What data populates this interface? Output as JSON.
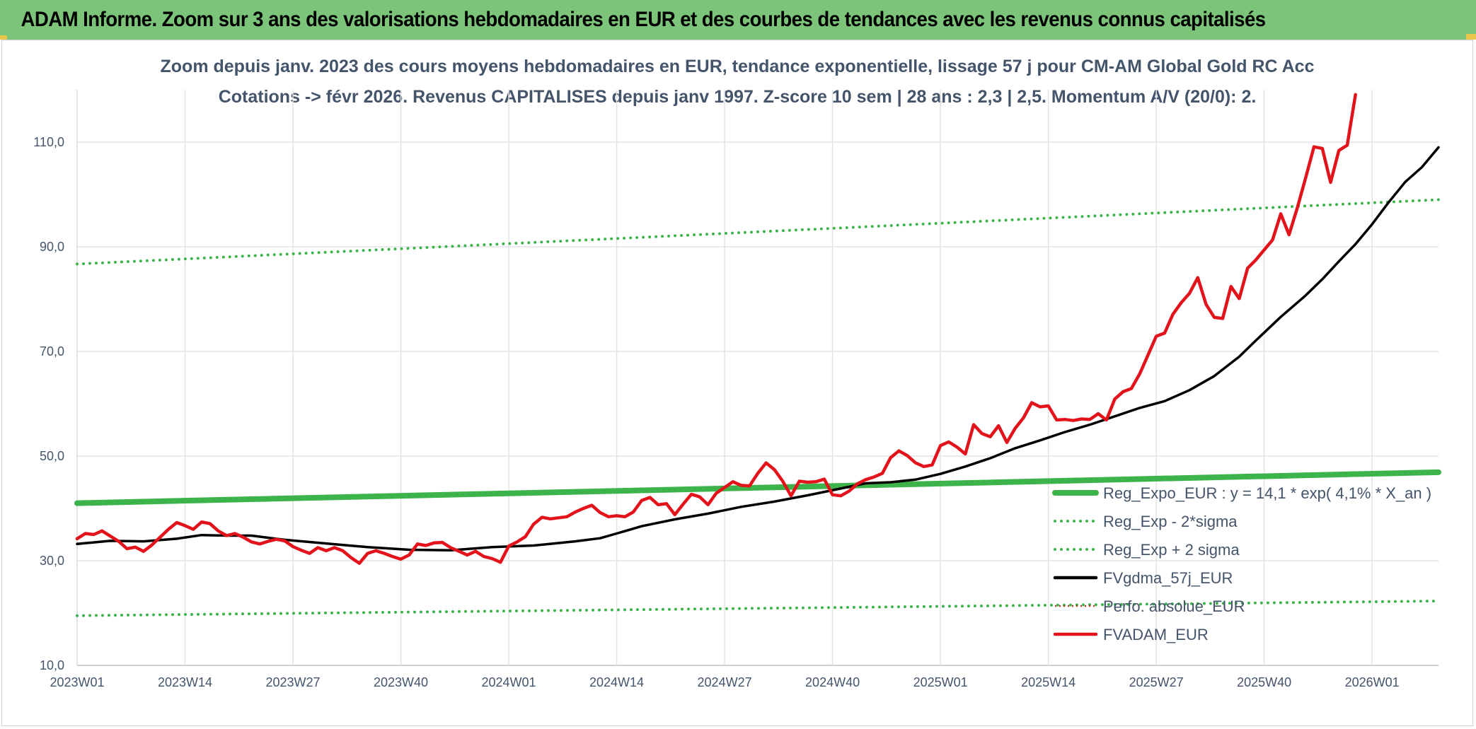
{
  "header": {
    "title": "ADAM Informe. Zoom sur 3 ans des valorisations hebdomadaires en EUR et des courbes de tendances avec les revenus connus capitalisés"
  },
  "chart_data": {
    "type": "line",
    "title": "Zoom depuis janv. 2023 des cours moyens hebdomadaires en EUR, tendance exponentielle, lissage 57 j pour CM-AM Global Gold RC Acc",
    "subtitle": "Cotations -> févr 2026. Revenus CAPITALISES depuis janv 1997. Z-score 10 sem | 28 ans : 2,3 | 2,5. Momentum A/V (20/0): 2.",
    "xlabel": "",
    "ylabel": "",
    "ylim": [
      10,
      120
    ],
    "yticks": [
      "10,0",
      "30,0",
      "50,0",
      "70,0",
      "90,0",
      "110,0"
    ],
    "ytick_values": [
      10,
      30,
      50,
      70,
      90,
      110
    ],
    "x_range": [
      0,
      164
    ],
    "xticks": [
      "2023W01",
      "2023W14",
      "2023W27",
      "2023W40",
      "2024W01",
      "2024W14",
      "2024W27",
      "2024W40",
      "2025W01",
      "2025W14",
      "2025W27",
      "2025W40",
      "2026W01"
    ],
    "xtick_positions": [
      0,
      13,
      26,
      39,
      52,
      65,
      78,
      91,
      104,
      117,
      130,
      143,
      156
    ],
    "grid": true,
    "legend_position": "bottom-right",
    "series": [
      {
        "name": "Reg_Expo_EUR : y = 14,1 * exp( 4,1% *  X_an )",
        "color": "#3cb44b",
        "style": "thick",
        "points": [
          [
            0,
            41.0
          ],
          [
            164,
            46.9
          ]
        ]
      },
      {
        "name": "Reg_Exp - 2*sigma",
        "color": "#3cb44b",
        "style": "dotted",
        "points": [
          [
            0,
            19.5
          ],
          [
            164,
            22.3
          ]
        ]
      },
      {
        "name": "Reg_Exp + 2 sigma",
        "color": "#3cb44b",
        "style": "dotted",
        "points": [
          [
            0,
            86.7
          ],
          [
            164,
            99.0
          ]
        ]
      },
      {
        "name": "FVgdma_57j_EUR",
        "color": "#000000",
        "style": "solid",
        "points": [
          [
            0,
            33.2
          ],
          [
            4,
            33.8
          ],
          [
            8,
            33.7
          ],
          [
            12,
            34.2
          ],
          [
            15,
            34.9
          ],
          [
            18,
            34.8
          ],
          [
            21,
            34.8
          ],
          [
            25,
            34.0
          ],
          [
            30,
            33.3
          ],
          [
            35,
            32.6
          ],
          [
            40,
            32.1
          ],
          [
            45,
            32.0
          ],
          [
            50,
            32.6
          ],
          [
            55,
            32.9
          ],
          [
            60,
            33.7
          ],
          [
            63,
            34.3
          ],
          [
            65,
            35.2
          ],
          [
            68,
            36.6
          ],
          [
            72,
            37.9
          ],
          [
            76,
            39.0
          ],
          [
            80,
            40.3
          ],
          [
            84,
            41.3
          ],
          [
            88,
            42.5
          ],
          [
            92,
            43.8
          ],
          [
            95,
            44.8
          ],
          [
            98,
            45.0
          ],
          [
            101,
            45.5
          ],
          [
            104,
            46.6
          ],
          [
            107,
            48.0
          ],
          [
            110,
            49.6
          ],
          [
            113,
            51.5
          ],
          [
            116,
            53.0
          ],
          [
            119,
            54.6
          ],
          [
            122,
            56.0
          ],
          [
            125,
            57.6
          ],
          [
            128,
            59.2
          ],
          [
            131,
            60.5
          ],
          [
            134,
            62.6
          ],
          [
            137,
            65.3
          ],
          [
            140,
            69.0
          ],
          [
            142,
            72.1
          ],
          [
            145,
            76.6
          ],
          [
            148,
            80.7
          ],
          [
            150,
            83.8
          ],
          [
            152,
            87.2
          ],
          [
            154,
            90.5
          ],
          [
            156,
            94.3
          ],
          [
            158,
            98.5
          ],
          [
            160,
            102.4
          ],
          [
            162,
            105.2
          ],
          [
            164,
            109.0
          ]
        ]
      },
      {
        "name": "Perfo. absolue_EUR",
        "color": "#c0392b",
        "style": "thin-dotted",
        "points": []
      },
      {
        "name": "FVADAM_EUR",
        "color": "#e3131b",
        "style": "solid",
        "points": [
          [
            0,
            34.2
          ],
          [
            1,
            35.2
          ],
          [
            2,
            35.0
          ],
          [
            3,
            35.7
          ],
          [
            4,
            34.7
          ],
          [
            5,
            33.7
          ],
          [
            6,
            32.3
          ],
          [
            7,
            32.6
          ],
          [
            8,
            31.8
          ],
          [
            9,
            33.0
          ],
          [
            10,
            34.5
          ],
          [
            11,
            36.0
          ],
          [
            12,
            37.3
          ],
          [
            13,
            36.7
          ],
          [
            14,
            36.0
          ],
          [
            15,
            37.4
          ],
          [
            16,
            37.1
          ],
          [
            17,
            35.7
          ],
          [
            18,
            34.8
          ],
          [
            19,
            35.2
          ],
          [
            20,
            34.5
          ],
          [
            21,
            33.6
          ],
          [
            22,
            33.2
          ],
          [
            23,
            33.7
          ],
          [
            24,
            34.1
          ],
          [
            25,
            33.8
          ],
          [
            26,
            32.7
          ],
          [
            27,
            32.0
          ],
          [
            28,
            31.4
          ],
          [
            29,
            32.5
          ],
          [
            30,
            31.9
          ],
          [
            31,
            32.5
          ],
          [
            32,
            31.9
          ],
          [
            33,
            30.6
          ],
          [
            34,
            29.5
          ],
          [
            35,
            31.4
          ],
          [
            36,
            31.9
          ],
          [
            37,
            31.4
          ],
          [
            38,
            30.8
          ],
          [
            39,
            30.3
          ],
          [
            40,
            31.1
          ],
          [
            41,
            33.2
          ],
          [
            42,
            32.9
          ],
          [
            43,
            33.4
          ],
          [
            44,
            33.5
          ],
          [
            45,
            32.5
          ],
          [
            46,
            31.8
          ],
          [
            47,
            31.1
          ],
          [
            48,
            31.8
          ],
          [
            49,
            30.8
          ],
          [
            50,
            30.4
          ],
          [
            51,
            29.7
          ],
          [
            52,
            32.8
          ],
          [
            53,
            33.6
          ],
          [
            54,
            34.6
          ],
          [
            55,
            37.0
          ],
          [
            56,
            38.3
          ],
          [
            57,
            38.0
          ],
          [
            58,
            38.2
          ],
          [
            59,
            38.4
          ],
          [
            60,
            39.3
          ],
          [
            61,
            40.0
          ],
          [
            62,
            40.6
          ],
          [
            63,
            39.2
          ],
          [
            64,
            38.4
          ],
          [
            65,
            38.6
          ],
          [
            66,
            38.4
          ],
          [
            67,
            39.3
          ],
          [
            68,
            41.5
          ],
          [
            69,
            42.1
          ],
          [
            70,
            40.7
          ],
          [
            71,
            40.9
          ],
          [
            72,
            38.8
          ],
          [
            73,
            40.8
          ],
          [
            74,
            42.7
          ],
          [
            75,
            42.2
          ],
          [
            76,
            40.7
          ],
          [
            77,
            42.9
          ],
          [
            78,
            44.0
          ],
          [
            79,
            45.1
          ],
          [
            80,
            44.4
          ],
          [
            81,
            44.3
          ],
          [
            82,
            46.7
          ],
          [
            83,
            48.7
          ],
          [
            84,
            47.4
          ],
          [
            85,
            45.2
          ],
          [
            86,
            42.4
          ],
          [
            87,
            45.2
          ],
          [
            88,
            45.0
          ],
          [
            89,
            45.1
          ],
          [
            90,
            45.6
          ],
          [
            91,
            42.6
          ],
          [
            92,
            42.4
          ],
          [
            93,
            43.3
          ],
          [
            94,
            44.7
          ],
          [
            95,
            45.5
          ],
          [
            96,
            46.0
          ],
          [
            97,
            46.7
          ],
          [
            98,
            49.7
          ],
          [
            99,
            51.0
          ],
          [
            100,
            50.1
          ],
          [
            101,
            48.7
          ],
          [
            102,
            48.0
          ],
          [
            103,
            48.3
          ],
          [
            104,
            52.0
          ],
          [
            105,
            52.7
          ],
          [
            106,
            51.7
          ],
          [
            107,
            50.4
          ],
          [
            108,
            56.0
          ],
          [
            109,
            54.3
          ],
          [
            110,
            53.7
          ],
          [
            111,
            55.8
          ],
          [
            112,
            52.6
          ],
          [
            113,
            55.3
          ],
          [
            114,
            57.3
          ],
          [
            115,
            60.2
          ],
          [
            116,
            59.4
          ],
          [
            117,
            59.6
          ],
          [
            118,
            56.9
          ],
          [
            119,
            57.0
          ],
          [
            120,
            56.8
          ],
          [
            121,
            57.1
          ],
          [
            122,
            57.0
          ],
          [
            123,
            58.1
          ],
          [
            124,
            56.9
          ],
          [
            125,
            60.9
          ],
          [
            126,
            62.3
          ],
          [
            127,
            62.9
          ],
          [
            128,
            65.7
          ],
          [
            129,
            69.3
          ],
          [
            130,
            72.9
          ],
          [
            131,
            73.5
          ],
          [
            132,
            77.1
          ],
          [
            133,
            79.3
          ],
          [
            134,
            81.1
          ],
          [
            135,
            84.1
          ],
          [
            136,
            79.0
          ],
          [
            137,
            76.5
          ],
          [
            138,
            76.3
          ],
          [
            139,
            82.4
          ],
          [
            140,
            80.1
          ],
          [
            141,
            85.9
          ],
          [
            142,
            87.5
          ],
          [
            143,
            89.4
          ],
          [
            144,
            91.3
          ],
          [
            145,
            96.3
          ],
          [
            146,
            92.3
          ],
          [
            147,
            97.5
          ],
          [
            148,
            103.2
          ],
          [
            149,
            109.1
          ],
          [
            150,
            108.8
          ],
          [
            151,
            102.3
          ],
          [
            152,
            108.4
          ],
          [
            153,
            109.4
          ],
          [
            154,
            119.1
          ]
        ]
      }
    ]
  }
}
